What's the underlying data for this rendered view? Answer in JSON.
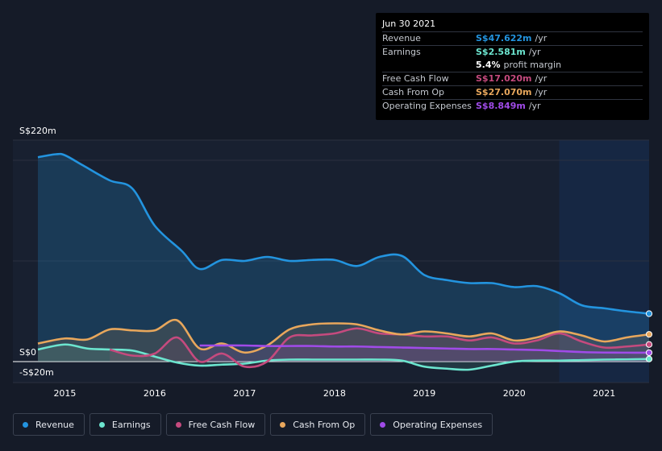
{
  "tooltip": {
    "date": "Jun 30 2021",
    "rows": [
      {
        "label": "Revenue",
        "value": "S$47.622m",
        "unit": "/yr",
        "color": "#2394df"
      },
      {
        "label": "Earnings",
        "value": "S$2.581m",
        "unit": "/yr",
        "color": "#6ce5cf"
      },
      {
        "label": "",
        "value": "5.4%",
        "unit": "profit margin",
        "color": "#ffffff"
      },
      {
        "label": "Free Cash Flow",
        "value": "S$17.020m",
        "unit": "/yr",
        "color": "#c54a7e"
      },
      {
        "label": "Cash From Op",
        "value": "S$27.070m",
        "unit": "/yr",
        "color": "#e8a75c"
      },
      {
        "label": "Operating Expenses",
        "value": "S$8.849m",
        "unit": "/yr",
        "color": "#a04be8"
      }
    ]
  },
  "legend": [
    {
      "label": "Revenue",
      "color": "#2394df"
    },
    {
      "label": "Earnings",
      "color": "#6ce5cf"
    },
    {
      "label": "Free Cash Flow",
      "color": "#c54a7e"
    },
    {
      "label": "Cash From Op",
      "color": "#e8a75c"
    },
    {
      "label": "Operating Expenses",
      "color": "#a04be8"
    }
  ],
  "chart_data": {
    "type": "area",
    "y_tick_labels": [
      "S$220m",
      "S$0",
      "-S$20m"
    ],
    "ylim": [
      -20,
      220
    ],
    "xlim": [
      2014.7,
      2021.5
    ],
    "x_tick_labels": [
      "2015",
      "2016",
      "2017",
      "2018",
      "2019",
      "2020",
      "2021"
    ],
    "x_ticks": [
      2015,
      2016,
      2017,
      2018,
      2019,
      2020,
      2021
    ],
    "highlight_from": 2020.5,
    "grid": true,
    "series": [
      {
        "name": "Revenue",
        "color": "#2394df",
        "x": [
          2014.7,
          2014.9,
          2015.0,
          2015.2,
          2015.5,
          2015.75,
          2016.0,
          2016.3,
          2016.5,
          2016.75,
          2017.0,
          2017.25,
          2017.5,
          2017.75,
          2018.0,
          2018.25,
          2018.5,
          2018.75,
          2019.0,
          2019.25,
          2019.5,
          2019.75,
          2020.0,
          2020.25,
          2020.5,
          2020.75,
          2021.0,
          2021.25,
          2021.5
        ],
        "y": [
          203,
          206,
          205,
          195,
          180,
          172,
          135,
          110,
          92,
          101,
          100,
          104,
          100,
          101,
          101,
          95,
          104,
          105,
          86,
          81,
          78,
          78,
          74,
          75,
          68,
          56,
          53,
          50,
          47.6
        ]
      },
      {
        "name": "Earnings",
        "color": "#6ce5cf",
        "x": [
          2014.7,
          2015.0,
          2015.25,
          2015.5,
          2015.75,
          2016.0,
          2016.25,
          2016.5,
          2016.75,
          2017.0,
          2017.25,
          2017.5,
          2017.75,
          2018.0,
          2018.25,
          2018.5,
          2018.75,
          2019.0,
          2019.25,
          2019.5,
          2019.75,
          2020.0,
          2020.25,
          2020.5,
          2020.75,
          2021.0,
          2021.25,
          2021.5
        ],
        "y": [
          12,
          17,
          13,
          12,
          11,
          5,
          -1,
          -4,
          -3,
          -2,
          1,
          2,
          2,
          2,
          2,
          2,
          1,
          -5,
          -7,
          -8,
          -4,
          0,
          1,
          1,
          1.5,
          2,
          2.2,
          2.58
        ]
      },
      {
        "name": "Free Cash Flow",
        "color": "#c54a7e",
        "x": [
          2015.5,
          2015.75,
          2016.0,
          2016.25,
          2016.5,
          2016.75,
          2017.0,
          2017.25,
          2017.5,
          2017.75,
          2018.0,
          2018.25,
          2018.5,
          2018.75,
          2019.0,
          2019.25,
          2019.5,
          2019.75,
          2020.0,
          2020.25,
          2020.5,
          2020.75,
          2021.0,
          2021.25,
          2021.5
        ],
        "y": [
          12,
          6,
          8,
          24,
          0,
          8,
          -5,
          0,
          24,
          26,
          28,
          33,
          28,
          27,
          25,
          25,
          21,
          24,
          18,
          21,
          28,
          20,
          14,
          15,
          17.02
        ]
      },
      {
        "name": "Cash From Op",
        "color": "#e8a75c",
        "x": [
          2014.7,
          2015.0,
          2015.25,
          2015.5,
          2015.75,
          2016.0,
          2016.25,
          2016.5,
          2016.75,
          2017.0,
          2017.25,
          2017.5,
          2017.75,
          2018.0,
          2018.25,
          2018.5,
          2018.75,
          2019.0,
          2019.25,
          2019.5,
          2019.75,
          2020.0,
          2020.25,
          2020.5,
          2020.75,
          2021.0,
          2021.25,
          2021.5
        ],
        "y": [
          18,
          23,
          22,
          32,
          31,
          31,
          41,
          13,
          18,
          9,
          16,
          32,
          37,
          38,
          37,
          31,
          27,
          30,
          28,
          25,
          28,
          21,
          24,
          30,
          26,
          20,
          24,
          27.07
        ]
      },
      {
        "name": "Operating Expenses",
        "color": "#a04be8",
        "x": [
          2016.5,
          2016.75,
          2017.0,
          2017.25,
          2017.5,
          2017.75,
          2018.0,
          2018.25,
          2018.5,
          2018.75,
          2019.0,
          2019.25,
          2019.5,
          2019.75,
          2020.0,
          2020.25,
          2020.5,
          2020.75,
          2021.0,
          2021.25,
          2021.5
        ],
        "y": [
          16,
          16,
          16,
          15.5,
          15.5,
          15.5,
          15,
          15,
          14.5,
          14,
          13.5,
          13,
          12.5,
          12.5,
          12,
          11.5,
          10.5,
          9.5,
          9,
          8.9,
          8.85
        ]
      }
    ]
  }
}
